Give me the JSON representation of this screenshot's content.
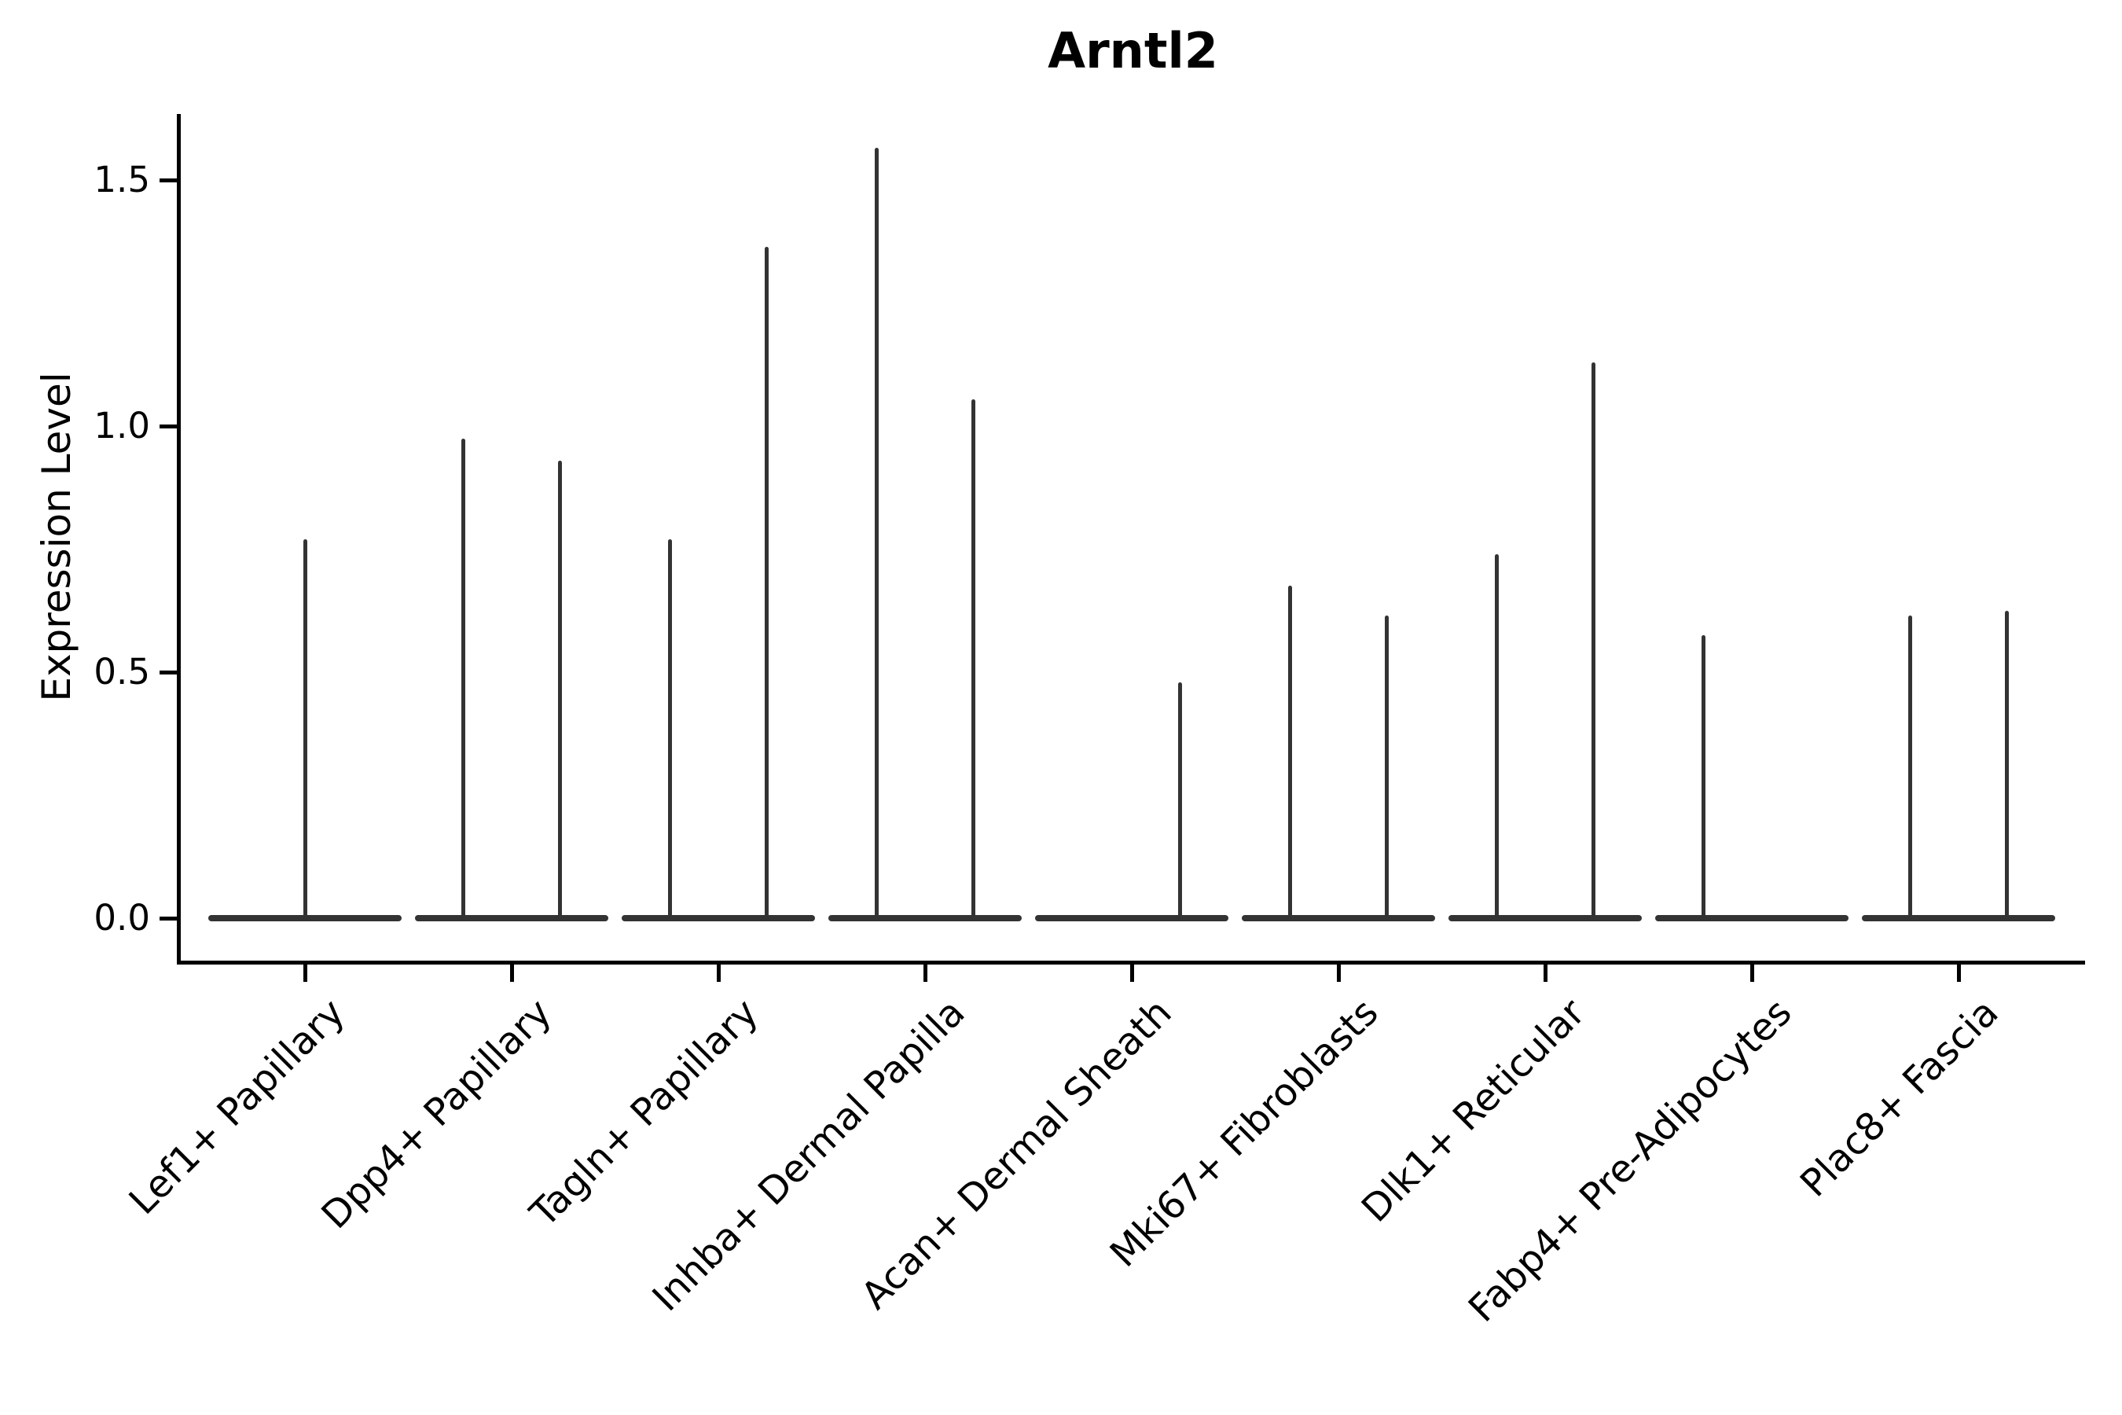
{
  "title": "Arntl2",
  "chart_data": {
    "type": "violin",
    "title": "Arntl2",
    "xlabel": "",
    "ylabel": "Expression Level",
    "ylim": [
      -0.09,
      1.63
    ],
    "grid": false,
    "legend": "none",
    "yticks": [
      {
        "label": "0.0",
        "value": 0.0
      },
      {
        "label": "0.5",
        "value": 0.5
      },
      {
        "label": "1.0",
        "value": 1.0
      },
      {
        "label": "1.5",
        "value": 1.5
      }
    ],
    "categories": [
      "Lef1+ Papillary",
      "Dpp4+ Papillary",
      "Tagln+ Papillary",
      "Inhba+ Dermal Papilla",
      "Acan+ Dermal Sheath",
      "Mki67+ Fibroblasts",
      "Dlk1+ Reticular",
      "Fabp4+ Pre-Adipocytes",
      "Plac8+ Fascia"
    ],
    "description": "Collapsed violin plot of Arntl2 expression: each category shows a flat violin body at 0 with thin spikes reaching the maximum expression values",
    "violins": [
      {
        "category": "Lef1+ Papillary",
        "spikes": [
          {
            "pos": "center",
            "max": 0.77
          }
        ]
      },
      {
        "category": "Dpp4+ Papillary",
        "spikes": [
          {
            "pos": "left",
            "max": 0.975
          },
          {
            "pos": "right",
            "max": 0.93
          }
        ]
      },
      {
        "category": "Tagln+ Papillary",
        "spikes": [
          {
            "pos": "left",
            "max": 0.77
          },
          {
            "pos": "right",
            "max": 1.365
          }
        ]
      },
      {
        "category": "Inhba+ Dermal Papilla",
        "spikes": [
          {
            "pos": "left",
            "max": 1.565
          },
          {
            "pos": "right",
            "max": 1.055
          }
        ]
      },
      {
        "category": "Acan+ Dermal Sheath",
        "spikes": [
          {
            "pos": "right",
            "max": 0.48
          }
        ]
      },
      {
        "category": "Mki67+ Fibroblasts",
        "spikes": [
          {
            "pos": "left",
            "max": 0.675
          },
          {
            "pos": "right",
            "max": 0.615
          }
        ]
      },
      {
        "category": "Dlk1+ Reticular",
        "spikes": [
          {
            "pos": "left",
            "max": 0.74
          },
          {
            "pos": "right",
            "max": 1.13
          }
        ]
      },
      {
        "category": "Fabp4+ Pre-Adipocytes",
        "spikes": [
          {
            "pos": "left",
            "max": 0.575
          }
        ]
      },
      {
        "category": "Plac8+ Fascia",
        "spikes": [
          {
            "pos": "left",
            "max": 0.615
          },
          {
            "pos": "right",
            "max": 0.625
          }
        ]
      }
    ],
    "colors": {
      "violin": "#333333",
      "axis": "#000000",
      "text": "#000000",
      "background": "#ffffff"
    }
  }
}
